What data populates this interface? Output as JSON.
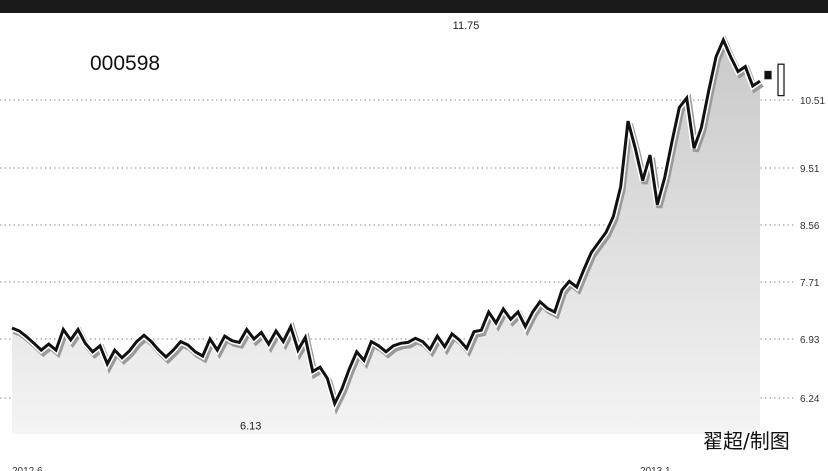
{
  "chart_data": {
    "type": "line",
    "title": "000598",
    "credit": "翟超/制图",
    "x_labels": [
      "2012.6",
      "2013.1"
    ],
    "yticks": [
      6.24,
      6.93,
      7.71,
      8.56,
      9.51,
      10.51
    ],
    "ytick_labels": [
      "6.24",
      "6.93",
      "7.71",
      "8.56",
      "9.51",
      "10.51"
    ],
    "ylim": [
      6.0,
      12.0
    ],
    "grid": true,
    "annotations": [
      {
        "label": "11.75",
        "value": 11.75,
        "index": 62
      },
      {
        "label": "6.13",
        "value": 6.13,
        "index": 33
      }
    ],
    "series": [
      {
        "values": [
          7.08,
          7.04,
          6.96,
          6.88,
          6.8,
          6.87,
          6.8,
          7.06,
          6.92,
          7.06,
          6.88,
          6.78,
          6.85,
          6.64,
          6.8,
          6.71,
          6.79,
          6.9,
          6.98,
          6.9,
          6.8,
          6.72,
          6.8,
          6.9,
          6.86,
          6.78,
          6.73,
          6.93,
          6.8,
          6.97,
          6.91,
          6.89,
          7.06,
          6.93,
          7.02,
          6.87,
          7.04,
          6.9,
          7.1,
          6.8,
          6.95,
          6.55,
          6.6,
          6.47,
          6.13,
          6.35,
          6.58,
          6.78,
          6.68,
          6.9,
          6.85,
          6.78,
          6.85,
          6.88,
          6.89,
          6.94,
          6.9,
          6.81,
          6.97,
          6.84,
          7.0,
          6.92,
          6.82,
          7.03,
          7.05,
          7.3,
          7.15,
          7.34,
          7.2,
          7.3,
          7.1,
          7.3,
          7.44,
          7.35,
          7.3,
          7.6,
          7.72,
          7.64,
          7.9,
          8.15,
          8.3,
          8.45,
          8.7,
          9.2,
          10.2,
          9.8,
          9.3,
          9.7,
          8.9,
          9.35,
          9.9,
          10.4,
          10.55,
          9.8,
          10.1,
          10.7,
          11.4,
          11.75,
          11.4,
          11.1,
          11.2,
          10.8,
          10.9
        ],
        "candle_tail": [
          {
            "open": 10.95,
            "close": 11.1
          },
          {
            "open": 10.6,
            "close": 11.25
          }
        ]
      }
    ]
  }
}
